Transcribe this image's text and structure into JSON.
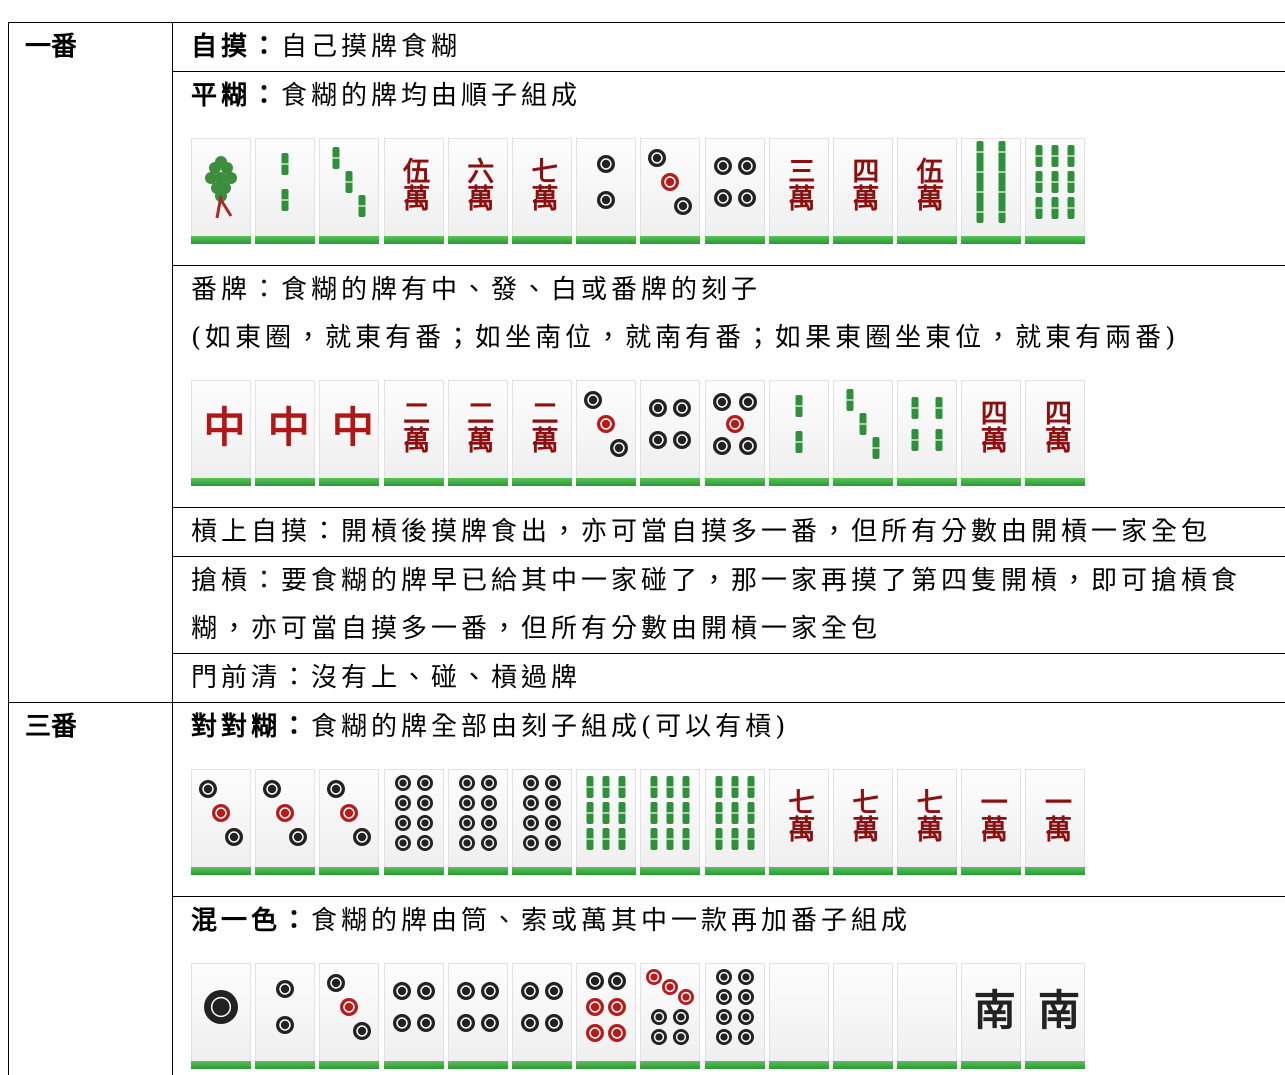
{
  "rows": [
    {
      "fan": "一番",
      "items": [
        {
          "name": "自摸：",
          "bold": true,
          "desc": "自己摸牌食糊"
        },
        {
          "name": "平糊：",
          "bold": true,
          "desc": "食糊的牌均由順子組成",
          "tiles": [
            null,
            null,
            null,
            {
              "text": "伍萬",
              "color": "#8b1010"
            },
            {
              "text": "六萬",
              "color": "#8b1010"
            },
            {
              "text": "七萬",
              "color": "#8b1010"
            },
            null,
            null,
            null,
            {
              "text": "三萬",
              "color": "#8b1010"
            },
            {
              "text": "四萬",
              "color": "#8b1010"
            },
            {
              "text": "伍萬",
              "color": "#8b1010"
            },
            null,
            null
          ]
        },
        {
          "name": "番牌：",
          "bold": false,
          "desc": "食糊的牌有中、發、白或番牌的刻子",
          "note": "(如東圈，就東有番；如坐南位，就南有番；如果東圈坐東位，就東有兩番)",
          "tiles": [
            {
              "text": "中",
              "color": "#b01818"
            },
            {
              "text": "中",
              "color": "#b01818"
            },
            {
              "text": "中",
              "color": "#b01818"
            },
            {
              "text": "二萬",
              "color": "#8b1010"
            },
            {
              "text": "二萬",
              "color": "#8b1010"
            },
            {
              "text": "二萬",
              "color": "#8b1010"
            },
            null,
            null,
            null,
            null,
            null,
            null,
            {
              "text": "四萬",
              "color": "#8b1010"
            },
            {
              "text": "四萬",
              "color": "#8b1010"
            }
          ]
        },
        {
          "name": "槓上自摸：",
          "bold": false,
          "desc": "開槓後摸牌食出，亦可當自摸多一番，但所有分數由開槓一家全包"
        },
        {
          "name": "搶槓：",
          "bold": false,
          "desc": "要食糊的牌早已給其中一家碰了，那一家再摸了第四隻開槓，即可搶槓食糊，亦可當自摸多一番，但所有分數由開槓一家全包"
        },
        {
          "name": "門前清：",
          "bold": false,
          "desc": "沒有上、碰、槓過牌"
        }
      ]
    },
    {
      "fan": "三番",
      "items": [
        {
          "name": "對對糊：",
          "bold": true,
          "desc": "食糊的牌全部由刻子組成(可以有槓)",
          "tiles": [
            null,
            null,
            null,
            null,
            null,
            null,
            null,
            null,
            null,
            {
              "text": "七萬",
              "color": "#8b1010"
            },
            {
              "text": "七萬",
              "color": "#8b1010"
            },
            {
              "text": "七萬",
              "color": "#8b1010"
            },
            {
              "text": "一萬",
              "color": "#8b1010"
            },
            {
              "text": "一萬",
              "color": "#8b1010"
            }
          ]
        },
        {
          "name": "混一色：",
          "bold": true,
          "desc": "食糊的牌由筒、索或萬其中一款再加番子組成",
          "tiles": [
            null,
            null,
            null,
            null,
            null,
            null,
            null,
            null,
            null,
            null,
            null,
            null,
            {
              "text": "南",
              "color": "#222222"
            },
            {
              "text": "南",
              "color": "#222222"
            }
          ]
        }
      ]
    }
  ]
}
